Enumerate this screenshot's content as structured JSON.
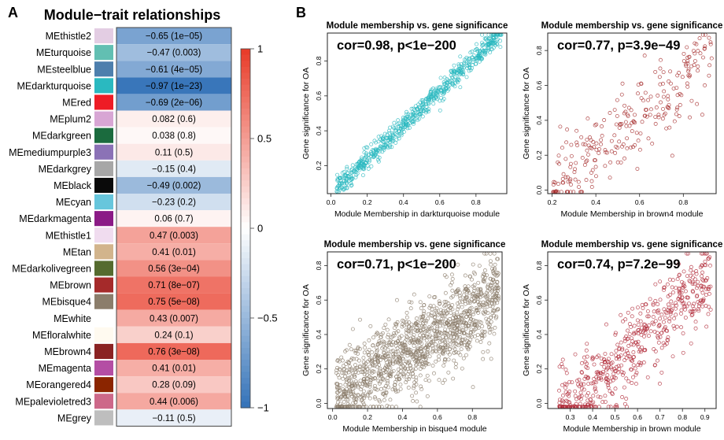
{
  "panels": {
    "a_label": "A",
    "b_label": "B"
  },
  "chart_data": [
    {
      "type": "heatmap",
      "title": "Module−trait relationships",
      "color_low": "#3372b8",
      "color_mid": "#ffffff",
      "color_high": "#e83a27",
      "colorbar_ticks": [
        "1",
        "0.5",
        "0",
        "−0.5",
        "−1"
      ],
      "colorbar_range": [
        -1,
        1
      ],
      "rows": [
        {
          "module": "MEthistle2",
          "color": "#e3cde3",
          "value": -0.65,
          "label": "−0.65 (1e−05)"
        },
        {
          "module": "MEturquoise",
          "color": "#62bfb2",
          "value": -0.47,
          "label": "−0.47 (0.003)"
        },
        {
          "module": "MEsteelblue",
          "color": "#4d7fad",
          "value": -0.61,
          "label": "−0.61 (4e−05)"
        },
        {
          "module": "MEdarkturquoise",
          "color": "#2ab9c0",
          "value": -0.97,
          "label": "−0.97 (1e−23)"
        },
        {
          "module": "MEred",
          "color": "#ee1c25",
          "value": -0.69,
          "label": "−0.69 (2e−06)"
        },
        {
          "module": "MEplum2",
          "color": "#d8a6d4",
          "value": 0.082,
          "label": "0.082 (0.6)"
        },
        {
          "module": "MEdarkgreen",
          "color": "#1b6b3e",
          "value": 0.038,
          "label": "0.038 (0.8)"
        },
        {
          "module": "MEmediumpurple3",
          "color": "#8b72b6",
          "value": 0.11,
          "label": "0.11 (0.5)"
        },
        {
          "module": "MEdarkgrey",
          "color": "#a7a7a7",
          "value": -0.15,
          "label": "−0.15 (0.4)"
        },
        {
          "module": "MEblack",
          "color": "#0a0a0a",
          "value": -0.49,
          "label": "−0.49 (0.002)"
        },
        {
          "module": "MEcyan",
          "color": "#67c6dc",
          "value": -0.23,
          "label": "−0.23 (0.2)"
        },
        {
          "module": "MEdarkmagenta",
          "color": "#8b1a86",
          "value": 0.06,
          "label": "0.06 (0.7)"
        },
        {
          "module": "MEthistle1",
          "color": "#f0dcef",
          "value": 0.47,
          "label": "0.47 (0.003)"
        },
        {
          "module": "MEtan",
          "color": "#d2b48c",
          "value": 0.41,
          "label": "0.41 (0.01)"
        },
        {
          "module": "MEdarkolivegreen",
          "color": "#556b2f",
          "value": 0.56,
          "label": "0.56 (3e−04)"
        },
        {
          "module": "MEbrown",
          "color": "#a52a2a",
          "value": 0.71,
          "label": "0.71 (8e−07)"
        },
        {
          "module": "MEbisque4",
          "color": "#8b7d6b",
          "value": 0.75,
          "label": "0.75 (5e−08)"
        },
        {
          "module": "MEwhite",
          "color": "#ffffff",
          "value": 0.43,
          "label": "0.43 (0.007)"
        },
        {
          "module": "MEfloralwhite",
          "color": "#fffaf0",
          "value": 0.24,
          "label": "0.24 (0.1)"
        },
        {
          "module": "MEbrown4",
          "color": "#8b2323",
          "value": 0.76,
          "label": "0.76 (3e−08)"
        },
        {
          "module": "MEmagenta",
          "color": "#b44ea4",
          "value": 0.41,
          "label": "0.41 (0.01)"
        },
        {
          "module": "MEorangered4",
          "color": "#8b2500",
          "value": 0.28,
          "label": "0.28 (0.09)"
        },
        {
          "module": "MEpalevioletred3",
          "color": "#cd6889",
          "value": 0.44,
          "label": "0.44 (0.006)"
        },
        {
          "module": "MEgrey",
          "color": "#bebebe",
          "value": -0.11,
          "label": "−0.11 (0.5)"
        }
      ]
    },
    {
      "type": "scatter",
      "title": "Module membership vs. gene significance",
      "annotation": "cor=0.98, p<1e−200",
      "xlabel": "Module Membership in darkturquoise module",
      "ylabel": "Gene significance for  OA",
      "color": "#2ab9c0",
      "xlim": [
        -0.02,
        0.97
      ],
      "ylim": [
        0.04,
        0.96
      ],
      "xticks": [
        "0.0",
        "0.2",
        "0.4",
        "0.6",
        "0.8"
      ],
      "xtick_values": [
        0,
        0.2,
        0.4,
        0.6,
        0.8
      ],
      "yticks": [
        "0.2",
        "0.4",
        "0.6",
        "0.8"
      ],
      "ytick_values": [
        0.2,
        0.4,
        0.6,
        0.8
      ],
      "points": {
        "n": 650,
        "x_range": [
          0.03,
          0.94
        ],
        "slope": 0.98,
        "intercept": 0.04,
        "noise": 0.03,
        "seed": 11
      }
    },
    {
      "type": "scatter",
      "title": "Module membership vs. gene significance",
      "annotation": "cor=0.77, p=3.9e−49",
      "xlabel": "Module Membership in brown4 module",
      "ylabel": "Gene significance for  OA",
      "color": "#a52a2a",
      "xlim": [
        0.18,
        0.95
      ],
      "ylim": [
        -0.02,
        0.9
      ],
      "xticks": [
        "0.2",
        "0.4",
        "0.6",
        "0.8"
      ],
      "xtick_values": [
        0.2,
        0.4,
        0.6,
        0.8
      ],
      "yticks": [
        "0.0",
        "0.2",
        "0.4",
        "0.6",
        "0.8"
      ],
      "ytick_values": [
        0,
        0.2,
        0.4,
        0.6,
        0.8
      ],
      "points": {
        "n": 260,
        "x_range": [
          0.2,
          0.93
        ],
        "slope": 1.0,
        "intercept": -0.2,
        "noise": 0.12,
        "seed": 23
      }
    },
    {
      "type": "scatter",
      "title": "Module membership vs. gene significance",
      "annotation": "cor=0.71, p<1e−200",
      "xlabel": "Module Membership in bisque4 module",
      "ylabel": "Gene significance for  OA",
      "color": "#8b7d6b",
      "xlim": [
        -0.03,
        0.97
      ],
      "ylim": [
        -0.03,
        0.88
      ],
      "xticks": [
        "0.0",
        "0.2",
        "0.4",
        "0.6",
        "0.8"
      ],
      "xtick_values": [
        0,
        0.2,
        0.4,
        0.6,
        0.8
      ],
      "yticks": [
        "0.0",
        "0.2",
        "0.4",
        "0.6",
        "0.8"
      ],
      "ytick_values": [
        0,
        0.2,
        0.4,
        0.6,
        0.8
      ],
      "points": {
        "n": 1300,
        "x_range": [
          0.02,
          0.95
        ],
        "slope": 0.65,
        "intercept": 0.02,
        "noise": 0.12,
        "seed": 37
      }
    },
    {
      "type": "scatter",
      "title": "Module membership vs. gene significance",
      "annotation": "cor=0.74, p=7.2e−99",
      "xlabel": "Module Membership in brown module",
      "ylabel": "Gene significance for  OA",
      "color": "#b22c3a",
      "xlim": [
        0.2,
        0.95
      ],
      "ylim": [
        -0.03,
        0.88
      ],
      "xticks": [
        "0.3",
        "0.4",
        "0.5",
        "0.6",
        "0.7",
        "0.8",
        "0.9"
      ],
      "xtick_values": [
        0.3,
        0.4,
        0.5,
        0.6,
        0.7,
        0.8,
        0.9
      ],
      "yticks": [
        "0.0",
        "0.2",
        "0.4",
        "0.6",
        "0.8"
      ],
      "ytick_values": [
        0,
        0.2,
        0.4,
        0.6,
        0.8
      ],
      "points": {
        "n": 560,
        "x_range": [
          0.25,
          0.93
        ],
        "slope": 1.2,
        "intercept": -0.38,
        "noise": 0.12,
        "seed": 53
      }
    }
  ]
}
